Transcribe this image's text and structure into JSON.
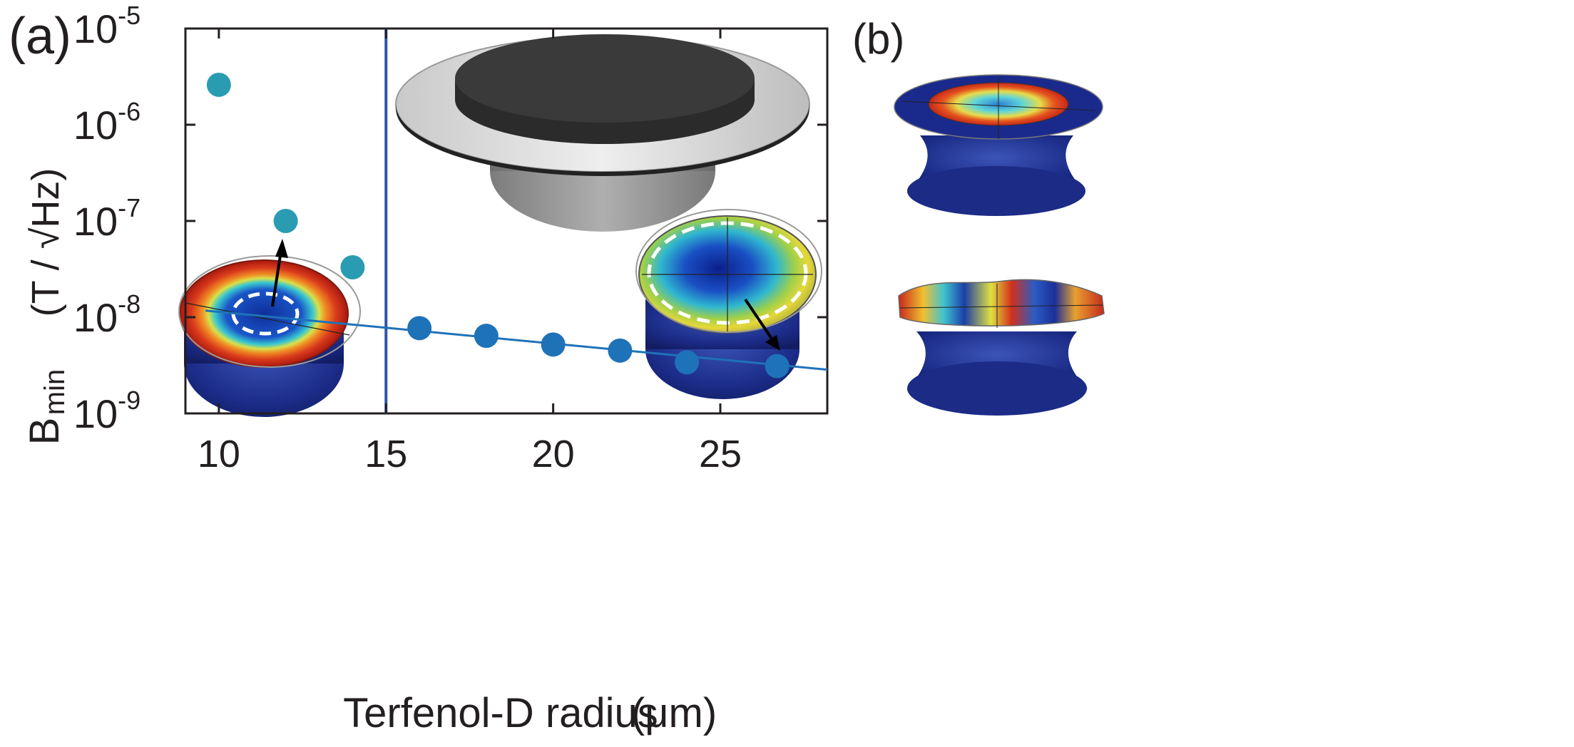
{
  "panel_labels": {
    "a": "(a)",
    "b": "(b)"
  },
  "chart_data": {
    "type": "scatter",
    "x_scale": "linear",
    "y_scale": "log",
    "xlim": [
      9,
      28.2
    ],
    "ylim": [
      1e-09,
      1e-05
    ],
    "xlabel": "Terfenol-D radius",
    "xlabel_unit": "(μm)",
    "ylabel_main": "B",
    "ylabel_sub": "min",
    "ylabel_unit": "(T / √Hz)",
    "x_ticks": [
      10,
      15,
      20,
      25
    ],
    "x_tick_labels": [
      "10",
      "15",
      "20",
      "25"
    ],
    "y_ticks": [
      1e-09,
      1e-08,
      1e-07,
      1e-06,
      1e-05
    ],
    "y_tick_labels": [
      {
        "base": "10",
        "exp": "-9"
      },
      {
        "base": "10",
        "exp": "-8"
      },
      {
        "base": "10",
        "exp": "-7"
      },
      {
        "base": "10",
        "exp": "-6"
      },
      {
        "base": "10",
        "exp": "-5"
      }
    ],
    "vertical_line_x": 15,
    "series": [
      {
        "color": "#2a9cb2",
        "x": [
          10,
          12,
          14
        ],
        "y": [
          2.6e-06,
          1e-07,
          3.3e-08
        ]
      },
      {
        "color": "#1e72b8",
        "x": [
          16,
          18,
          20,
          22,
          24,
          26.7
        ],
        "y": [
          7.7e-09,
          6.4e-09,
          5.2e-09,
          4.5e-09,
          3.4e-09,
          3.1e-09
        ]
      }
    ],
    "fit_line": {
      "color": "#1e72b8",
      "x": [
        9.6,
        28.2
      ],
      "y": [
        1.17e-08,
        2.85e-09
      ]
    }
  }
}
